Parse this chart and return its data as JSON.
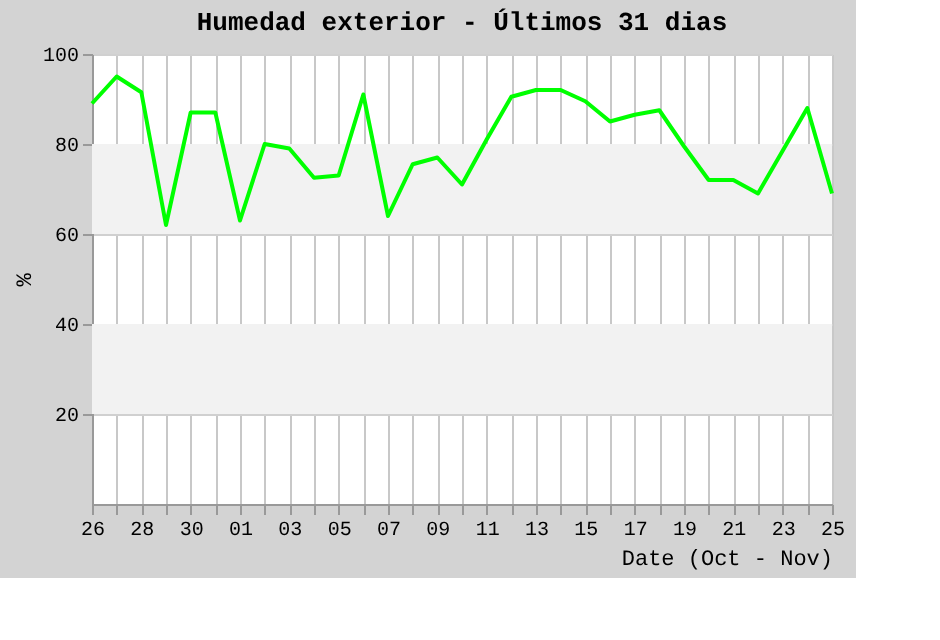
{
  "chart_data": {
    "type": "line",
    "title": "Humedad exterior - Últimos 31 dias",
    "xlabel": "Date (Oct - Nov)",
    "ylabel": "%",
    "categories": [
      "26",
      null,
      "28",
      null,
      "30",
      null,
      "01",
      null,
      "03",
      null,
      "05",
      null,
      "07",
      null,
      "09",
      null,
      "11",
      null,
      "13",
      null,
      "15",
      null,
      "17",
      null,
      "19",
      null,
      "21",
      null,
      "23",
      null,
      "25"
    ],
    "series": [
      {
        "color": "#00ff00",
        "values": [
          89,
          95,
          91.5,
          62,
          87,
          87,
          63,
          80,
          79,
          72.5,
          73,
          91,
          64,
          75.5,
          77,
          71,
          81,
          90.5,
          92,
          92,
          89.5,
          85,
          86.5,
          87.5,
          79.5,
          72,
          72,
          69,
          78.5,
          88,
          69
        ]
      }
    ],
    "ylim": [
      0,
      100
    ],
    "yticks": [
      20,
      40,
      60,
      80,
      100
    ],
    "grid": true,
    "marker": "none",
    "line_style": "solid",
    "bands": [
      {
        "axis": "y",
        "from": 20,
        "to": 40,
        "color": "#f2f2f2"
      },
      {
        "axis": "y",
        "from": 60,
        "to": 80,
        "color": "#f2f2f2"
      }
    ]
  }
}
